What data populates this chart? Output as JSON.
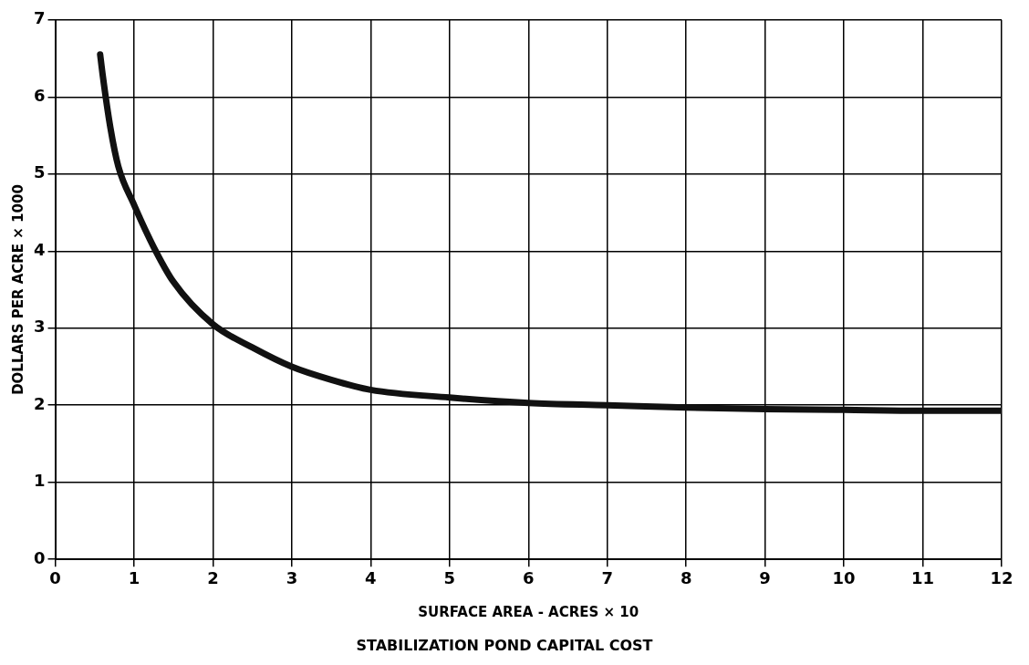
{
  "chart_data": {
    "type": "line",
    "title": "STABILIZATION POND CAPITAL COST",
    "xlabel": "SURFACE AREA - ACRES × 10",
    "ylabel": "DOLLARS PER ACRE × 1000",
    "x": [
      0.57,
      0.6,
      0.7,
      0.8,
      1,
      1.25,
      1.5,
      2,
      2.5,
      3,
      3.5,
      4,
      5,
      6,
      7,
      8,
      9,
      10,
      11,
      12
    ],
    "series": [
      {
        "color": "#111111",
        "values": [
          6.55,
          6.3,
          5.6,
          5.1,
          4.6,
          4.05,
          3.6,
          3.05,
          2.75,
          2.5,
          2.33,
          2.2,
          2.1,
          2.03,
          2.0,
          1.97,
          1.95,
          1.94,
          1.93,
          1.93
        ]
      }
    ],
    "xlim": [
      0,
      12
    ],
    "xticks": [
      0,
      1,
      2,
      3,
      4,
      5,
      6,
      7,
      8,
      9,
      10,
      11,
      12
    ],
    "ylim": [
      0,
      7
    ],
    "yticks": [
      0,
      1,
      2,
      3,
      4,
      5,
      6,
      7
    ],
    "grid": true,
    "marker": "none",
    "line_style": "solid"
  }
}
